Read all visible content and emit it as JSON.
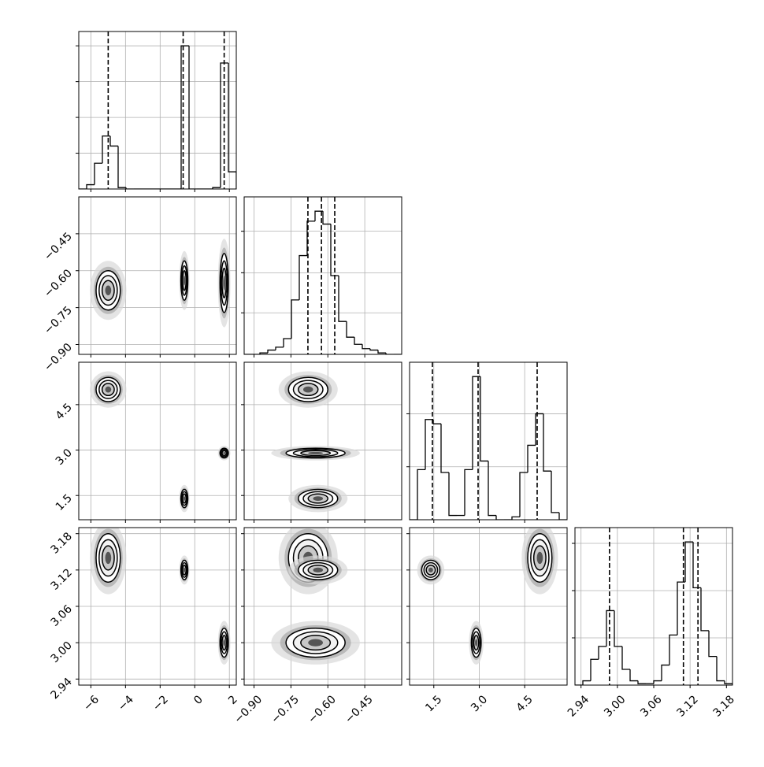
{
  "chart_data": {
    "type": "corner",
    "grid": true,
    "color": "#000000",
    "params": [
      {
        "xlim": [
          -6.7,
          2.4
        ],
        "xticks": [
          {
            "value": -6,
            "label": "−6"
          },
          {
            "value": -4,
            "label": "−4"
          },
          {
            "value": -2,
            "label": "−2"
          },
          0,
          2
        ],
        "hist": {
          "bins": [
            -6.7,
            -6.245,
            -5.79,
            -5.335,
            -4.88,
            -4.425,
            -3.97,
            -3.515,
            -3.06,
            -2.605,
            -2.15,
            -1.695,
            -1.24,
            -0.785,
            -0.33,
            0.125,
            0.58,
            1.035,
            1.49,
            1.945,
            2.4
          ],
          "counts": [
            0,
            0.03,
            0.18,
            0.37,
            0.3,
            0.01,
            0,
            0,
            0,
            0,
            0,
            0,
            0,
            1.0,
            0,
            0,
            0,
            0.01,
            0.88,
            0.12
          ],
          "ylim": [
            0,
            1.1
          ],
          "yticks": [
            0.25,
            0.5,
            0.75,
            1.0
          ],
          "quantiles": [
            -5.0,
            -0.67,
            1.7
          ]
        }
      },
      {
        "xlim": [
          -0.94,
          -0.3
        ],
        "xticks": [
          {
            "value": -0.9,
            "label": "−0.90"
          },
          {
            "value": -0.75,
            "label": "−0.75"
          },
          {
            "value": -0.6,
            "label": "−0.60"
          },
          {
            "value": -0.45,
            "label": "−0.45"
          }
        ],
        "hist": {
          "bins": [
            -0.94,
            -0.908,
            -0.876,
            -0.844,
            -0.812,
            -0.78,
            -0.748,
            -0.716,
            -0.684,
            -0.652,
            -0.62,
            -0.588,
            -0.556,
            -0.524,
            -0.492,
            -0.46,
            -0.428,
            -0.396,
            -0.364,
            -0.332,
            -0.3
          ],
          "counts": [
            0,
            0,
            0.01,
            0.03,
            0.05,
            0.11,
            0.38,
            0.69,
            0.93,
            1.0,
            0.91,
            0.55,
            0.23,
            0.12,
            0.07,
            0.04,
            0.03,
            0.01,
            0,
            0
          ],
          "ylim": [
            0,
            1.1
          ],
          "yticks": [
            0.29,
            0.57,
            0.86
          ],
          "quantiles": [
            -0.681,
            -0.626,
            -0.572
          ]
        }
      },
      {
        "xlim": [
          0.7,
          5.9
        ],
        "xticks": [
          1.5,
          {
            "value": 3.0,
            "label": "3.0"
          },
          4.5
        ],
        "hist": {
          "bins": [
            0.7,
            0.96,
            1.22,
            1.48,
            1.74,
            2.0,
            2.26,
            2.52,
            2.78,
            3.04,
            3.3,
            3.56,
            3.82,
            4.08,
            4.34,
            4.6,
            4.86,
            5.12,
            5.38,
            5.64,
            5.9
          ],
          "counts": [
            0,
            0.35,
            0.7,
            0.67,
            0.33,
            0.03,
            0.03,
            0.35,
            1.0,
            0.41,
            0.03,
            0,
            0,
            0.02,
            0.33,
            0.52,
            0.74,
            0.34,
            0.05,
            0
          ],
          "ylim": [
            0,
            1.1
          ],
          "yticks": [
            0.37,
            0.74
          ],
          "quantiles": [
            1.454,
            2.962,
            4.912
          ]
        }
      },
      {
        "xlim": [
          2.93,
          3.19
        ],
        "xticks": [
          2.94,
          {
            "value": 3.0,
            "label": "3.00"
          },
          3.06,
          3.12,
          3.18
        ],
        "hist": {
          "bins": [
            2.93,
            2.943,
            2.956,
            2.969,
            2.982,
            2.995,
            3.008,
            3.021,
            3.034,
            3.047,
            3.06,
            3.073,
            3.086,
            3.099,
            3.112,
            3.125,
            3.138,
            3.151,
            3.164,
            3.177,
            3.19
          ],
          "counts": [
            0,
            0.03,
            0.18,
            0.27,
            0.52,
            0.27,
            0.11,
            0.03,
            0.01,
            0.01,
            0.03,
            0.14,
            0.35,
            0.72,
            1.0,
            0.68,
            0.38,
            0.2,
            0.03,
            0.01
          ],
          "ylim": [
            0,
            1.1
          ],
          "yticks": [
            0.33,
            0.66,
            0.99
          ],
          "quantiles": [
            2.987,
            3.109,
            3.133
          ]
        }
      }
    ],
    "clusters": [
      {
        "center": [
          -5.0,
          -0.68,
          5.0,
          3.14
        ],
        "sd": [
          0.35,
          0.04,
          0.2,
          0.02
        ]
      },
      {
        "center": [
          -0.6,
          -0.64,
          1.4,
          3.12
        ],
        "sd": [
          0.1,
          0.04,
          0.15,
          0.008
        ]
      },
      {
        "center": [
          1.7,
          -0.65,
          2.9,
          3.0
        ],
        "sd": [
          0.12,
          0.06,
          0.08,
          0.012
        ]
      }
    ]
  }
}
